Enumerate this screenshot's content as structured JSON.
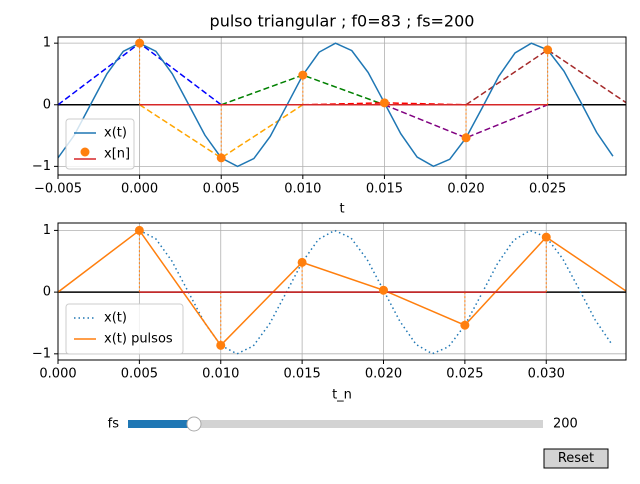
{
  "chart_data": [
    {
      "type": "line",
      "title": "pulso triangular ; f0=83 ; fs=200",
      "xlabel": "t",
      "xlim": [
        -0.005,
        0.0298
      ],
      "ylim": [
        -1.14,
        1.1
      ],
      "xticks": [
        {
          "value": -0.005,
          "label": "−0.005"
        },
        {
          "value": 0,
          "label": "0.000"
        },
        {
          "value": 0.005,
          "label": "0.005"
        },
        {
          "value": 0.01,
          "label": "0.010"
        },
        {
          "value": 0.015,
          "label": "0.015"
        },
        {
          "value": 0.02,
          "label": "0.020"
        },
        {
          "value": 0.025,
          "label": "0.025"
        }
      ],
      "yticks": [
        {
          "value": -1,
          "label": "−1"
        },
        0,
        1
      ],
      "grid": true,
      "legend": "lower left",
      "series": [
        {
          "name": "x(t)",
          "color": "#1f77b4",
          "linestyle": "solid",
          "x": [
            -0.005,
            -0.004,
            -0.003,
            -0.002,
            -0.001,
            0,
            0.001,
            0.002,
            0.003,
            0.004,
            0.005,
            0.006,
            0.007,
            0.008,
            0.009,
            0.01,
            0.011,
            0.012,
            0.013,
            0.014,
            0.015,
            0.016,
            0.017,
            0.018,
            0.019,
            0.02,
            0.021,
            0.022,
            0.023,
            0.024,
            0.025,
            0.026,
            0.027,
            0.028,
            0.029
          ],
          "values": [
            -0.862,
            -0.493,
            0.006,
            0.503,
            0.867,
            1,
            0.867,
            0.503,
            0.006,
            -0.493,
            -0.862,
            -1,
            -0.873,
            -0.514,
            -0.019,
            0.482,
            0.854,
            1,
            0.879,
            0.525,
            0.031,
            -0.47,
            -0.848,
            -0.999,
            -0.885,
            -0.536,
            -0.044,
            0.46,
            0.841,
            0.999,
            0.891,
            0.546,
            0.057,
            -0.448,
            -0.834
          ]
        }
      ],
      "stems": {
        "name": "x[n]",
        "color": "#ff7f0e",
        "baseline_color": "#d62728",
        "x": [
          0,
          0.005,
          0.01,
          0.015,
          0.02,
          0.025
        ],
        "values": [
          1,
          -0.862,
          0.482,
          0.031,
          -0.536,
          0.891
        ]
      },
      "pulse_colors": [
        "#0000ff",
        "#ffa500",
        "#008000",
        "#ff0000",
        "#800080",
        "#a52a2a"
      ]
    },
    {
      "type": "line",
      "xlabel": "t_n",
      "xlim": [
        0,
        0.0349
      ],
      "ylim": [
        -1.1,
        1.12
      ],
      "xticks": [
        {
          "value": 0,
          "label": "0.000"
        },
        {
          "value": 0.005,
          "label": "0.005"
        },
        {
          "value": 0.01,
          "label": "0.010"
        },
        {
          "value": 0.015,
          "label": "0.015"
        },
        {
          "value": 0.02,
          "label": "0.020"
        },
        {
          "value": 0.025,
          "label": "0.025"
        },
        {
          "value": 0.03,
          "label": "0.030"
        }
      ],
      "yticks": [
        {
          "value": -1,
          "label": "−1"
        },
        0,
        1
      ],
      "grid": true,
      "legend": "lower left",
      "series": [
        {
          "name": "x(t)",
          "color": "#1f77b4",
          "linestyle": "dotted",
          "x": [
            0.005,
            0.006,
            0.007,
            0.008,
            0.009,
            0.01,
            0.011,
            0.012,
            0.013,
            0.014,
            0.015,
            0.016,
            0.017,
            0.018,
            0.019,
            0.02,
            0.021,
            0.022,
            0.023,
            0.024,
            0.025,
            0.026,
            0.027,
            0.028,
            0.029,
            0.03,
            0.031,
            0.032,
            0.033,
            0.034
          ],
          "values": [
            1,
            0.867,
            0.503,
            0.006,
            -0.493,
            -0.862,
            -1,
            -0.873,
            -0.514,
            -0.019,
            0.482,
            0.854,
            1,
            0.879,
            0.525,
            0.031,
            -0.47,
            -0.848,
            -0.999,
            -0.885,
            -0.536,
            -0.044,
            0.46,
            0.841,
            0.999,
            0.891,
            0.546,
            0.057,
            -0.448,
            -0.834
          ]
        },
        {
          "name": "x(t) pulsos",
          "color": "#ff7f0e",
          "linestyle": "solid",
          "x": [
            0,
            0.005,
            0.01,
            0.015,
            0.02,
            0.025,
            0.03,
            0.035
          ],
          "values": [
            0,
            1,
            -0.862,
            0.482,
            0.031,
            -0.536,
            0.891,
            0
          ]
        }
      ],
      "stems": {
        "color": "#ff7f0e",
        "baseline_color": "#d62728",
        "x": [
          0.005,
          0.01,
          0.015,
          0.02,
          0.025,
          0.03
        ],
        "values": [
          1,
          -0.862,
          0.482,
          0.031,
          -0.536,
          0.891
        ]
      }
    }
  ],
  "slider": {
    "label": "fs",
    "value": 200,
    "color": "#1f77b4"
  },
  "reset_button": {
    "label": "Reset"
  }
}
